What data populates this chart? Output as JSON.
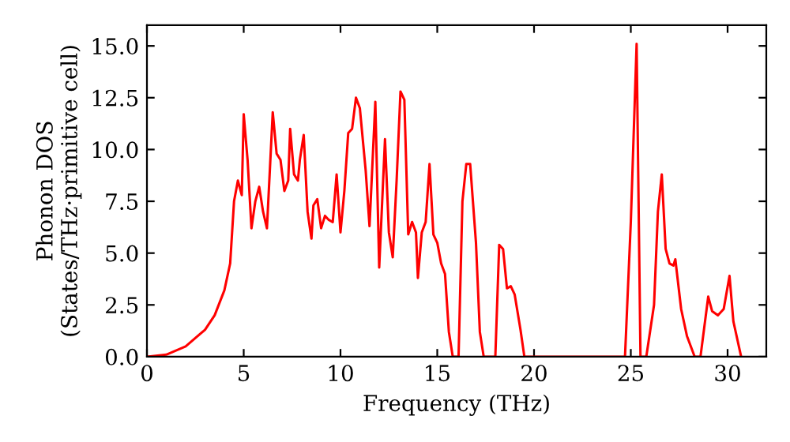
{
  "chart_data": {
    "type": "line",
    "xlabel": "Frequency (THz)",
    "ylabel": "Phonon DOS\n(States/THz·primitive cell)",
    "xlim": [
      0,
      32
    ],
    "ylim": [
      0,
      16
    ],
    "xticks": [
      0,
      5,
      10,
      15,
      20,
      25,
      30
    ],
    "yticks": [
      {
        "value": 0,
        "label": "0.0"
      },
      {
        "value": 2.5,
        "label": "2.5"
      },
      {
        "value": 5,
        "label": "5.0"
      },
      {
        "value": 7.5,
        "label": "7.5"
      },
      {
        "value": 10,
        "label": "10.0"
      },
      {
        "value": 12.5,
        "label": "12.5"
      },
      {
        "value": 15,
        "label": "15.0"
      }
    ],
    "grid": false,
    "legend": false,
    "marker": "none",
    "line_style": "solid",
    "series": [
      {
        "color": "#ff0000",
        "x": [
          0,
          1,
          2,
          3,
          3.5,
          4,
          4.3,
          4.5,
          4.7,
          4.9,
          5.0,
          5.2,
          5.4,
          5.6,
          5.8,
          6.0,
          6.2,
          6.5,
          6.7,
          6.9,
          7.1,
          7.3,
          7.4,
          7.6,
          7.8,
          7.9,
          8.1,
          8.3,
          8.5,
          8.6,
          8.8,
          9.0,
          9.2,
          9.4,
          9.6,
          9.8,
          10.0,
          10.2,
          10.4,
          10.6,
          10.8,
          11.0,
          11.3,
          11.5,
          11.8,
          12.0,
          12.3,
          12.5,
          12.7,
          12.9,
          13.1,
          13.3,
          13.5,
          13.7,
          13.9,
          14.0,
          14.2,
          14.4,
          14.6,
          14.8,
          15.0,
          15.2,
          15.4,
          15.6,
          15.8,
          16.1,
          16.3,
          16.5,
          16.7,
          17.0,
          17.2,
          17.4,
          18.0,
          18.2,
          18.4,
          18.6,
          18.8,
          19.0,
          19.3,
          19.5,
          24.7,
          25.0,
          25.3,
          25.5,
          25.8,
          26.2,
          26.4,
          26.6,
          26.8,
          27.0,
          27.2,
          27.3,
          27.6,
          27.9,
          28.3,
          28.6,
          29.0,
          29.2,
          29.5,
          29.8,
          30.1,
          30.3,
          30.7
        ],
        "values": [
          0,
          0.1,
          0.5,
          1.3,
          2,
          3.2,
          4.5,
          7.5,
          8.5,
          7.8,
          11.7,
          9.5,
          6.2,
          7.5,
          8.2,
          7,
          6.2,
          11.8,
          9.8,
          9.5,
          8,
          8.5,
          11,
          8.8,
          8.5,
          9.5,
          10.7,
          7,
          5.7,
          7.3,
          7.6,
          6.2,
          6.8,
          6.6,
          6.5,
          8.8,
          6,
          8,
          10.8,
          11,
          12.5,
          12,
          9,
          6.3,
          12.3,
          4.3,
          10.5,
          6,
          4.8,
          8.5,
          12.8,
          12.4,
          5.9,
          6.5,
          6,
          3.8,
          6,
          6.5,
          9.3,
          5.9,
          5.5,
          4.5,
          4,
          1.2,
          0,
          0,
          7.5,
          9.3,
          9.3,
          5.5,
          1.2,
          0,
          0,
          5.4,
          5.2,
          3.3,
          3.4,
          3,
          1.3,
          0,
          0,
          6.5,
          15.1,
          0,
          0,
          2.5,
          7,
          8.8,
          5.2,
          4.5,
          4.4,
          4.7,
          2.3,
          1,
          0,
          0,
          2.9,
          2.2,
          2,
          2.3,
          3.9,
          1.7,
          0
        ]
      }
    ]
  }
}
